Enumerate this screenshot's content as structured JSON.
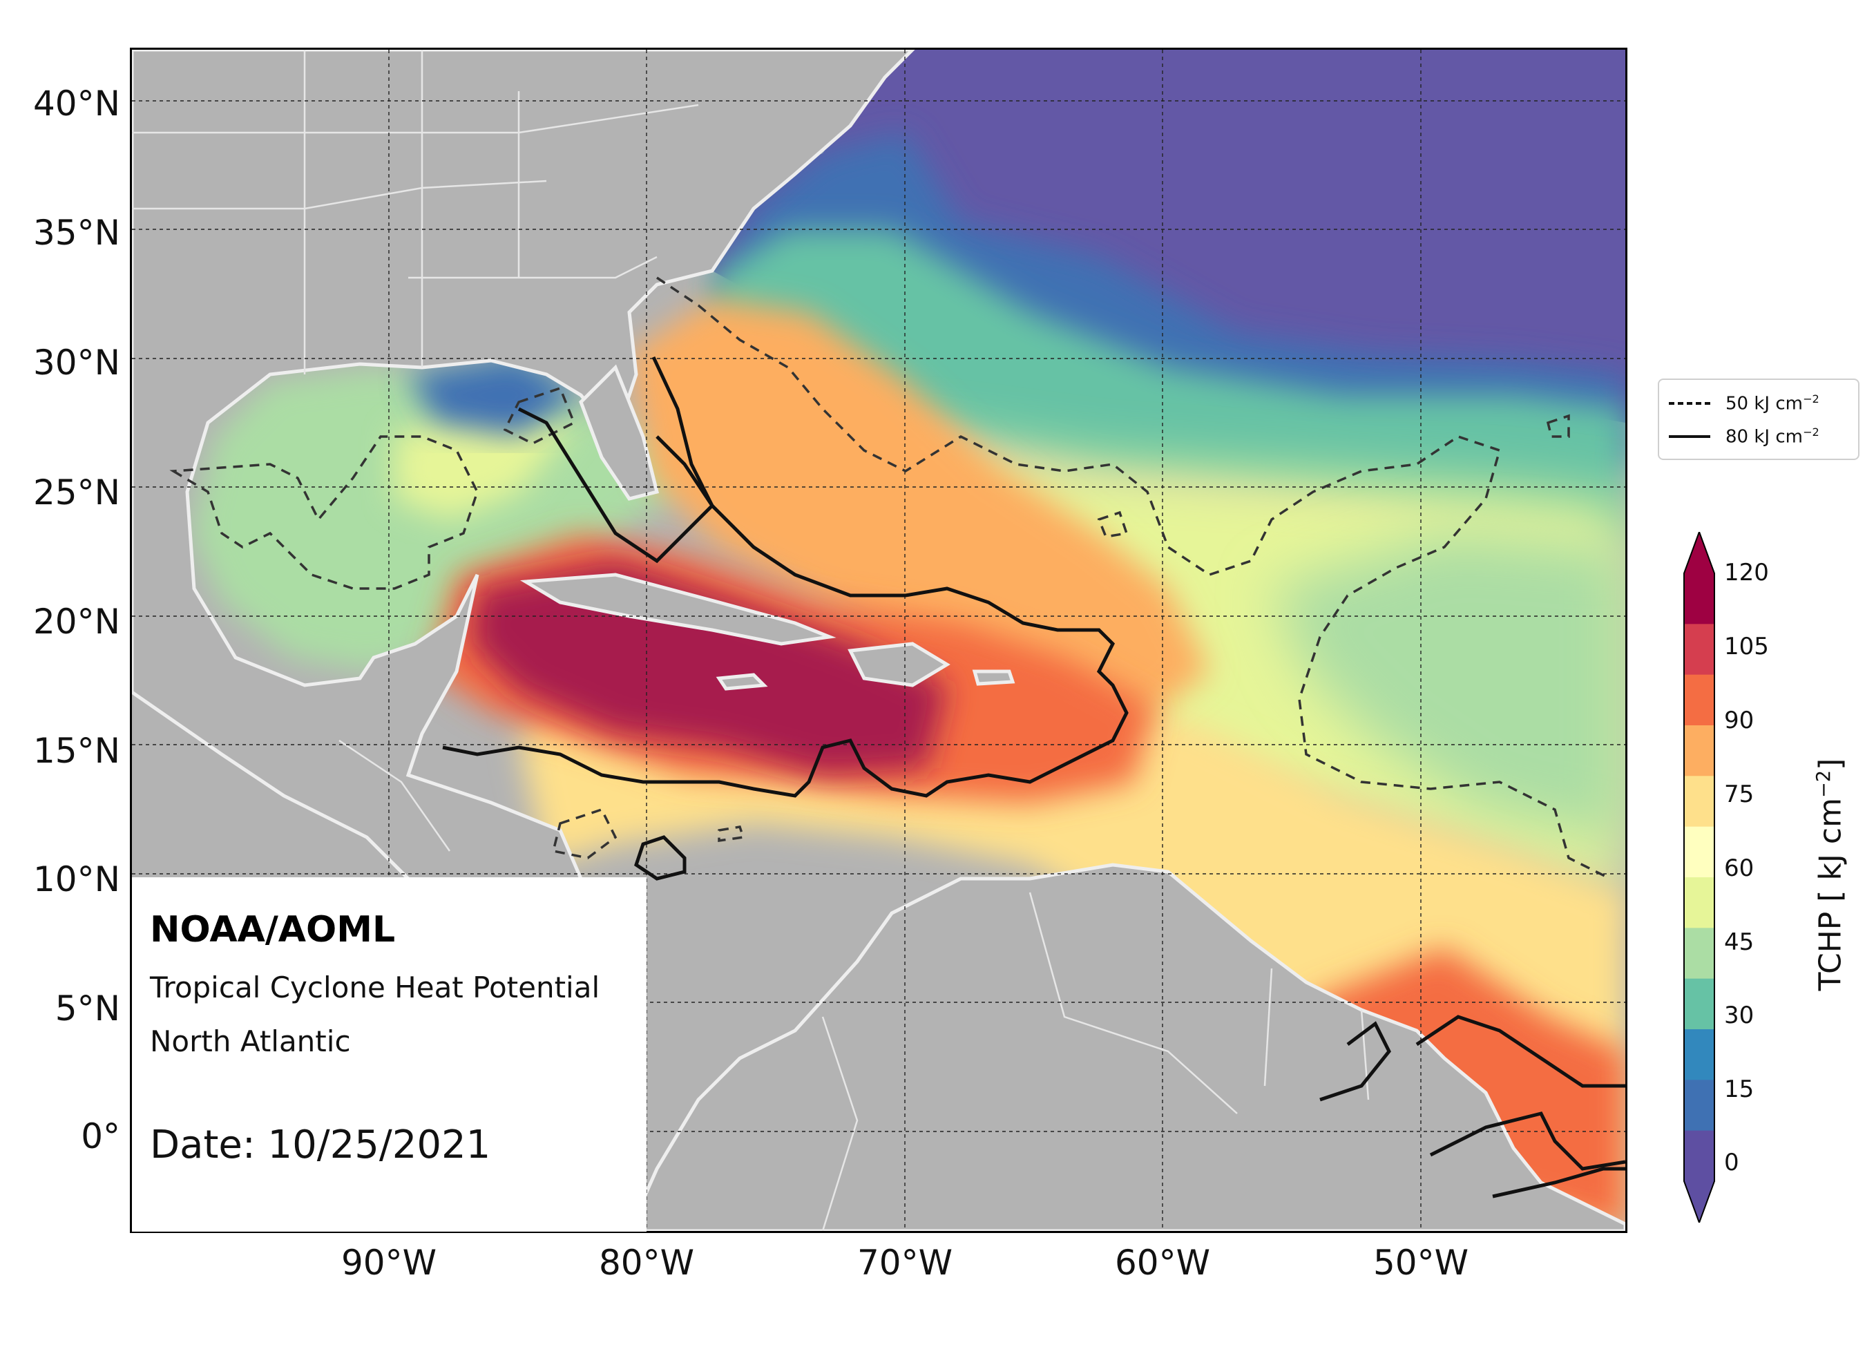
{
  "map": {
    "organization": "NOAA/AOML",
    "product": "Tropical Cyclone Heat Potential",
    "region": "North Atlantic",
    "date_label": "Date:",
    "date": "10/25/2021",
    "lat_labels": [
      "40°N",
      "35°N",
      "30°N",
      "25°N",
      "20°N",
      "15°N",
      "10°N",
      "5°N",
      "0°"
    ],
    "lon_labels": [
      "90°W",
      "80°W",
      "70°W",
      "60°W",
      "50°W"
    ],
    "extent": {
      "lon_min": -100,
      "lon_max": -42,
      "lat_min": -4,
      "lat_max": 42
    }
  },
  "legend": {
    "items": [
      {
        "label": "50 kJ cm",
        "exponent": "−2",
        "style": "dashed",
        "value": 50
      },
      {
        "label": "80 kJ cm",
        "exponent": "−2",
        "style": "solid",
        "value": 80
      }
    ]
  },
  "colorbar": {
    "title": "TCHP [ kJ cm",
    "title_exponent": "−2",
    "title_close": "]",
    "ticks": [
      "120",
      "105",
      "90",
      "75",
      "60",
      "45",
      "30",
      "15",
      "0"
    ],
    "min": -5,
    "max": 120,
    "palette": [
      "#5e4fa2",
      "#3f71b3",
      "#3288bd",
      "#66c2a5",
      "#abdda4",
      "#e6f598",
      "#ffffbf",
      "#fee08b",
      "#fdae61",
      "#f46d43",
      "#d53e4f",
      "#9e0142"
    ]
  },
  "colors": {
    "land": "#b3b3b3",
    "coast": "#eeeeee",
    "cold_water": "#6358a6",
    "warm_core": "#a71a4d"
  }
}
